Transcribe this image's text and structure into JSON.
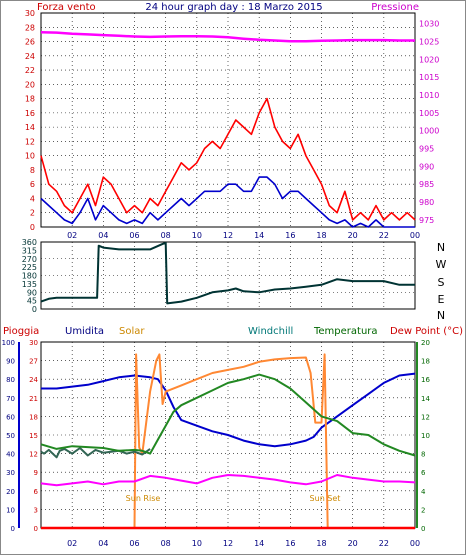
{
  "colors": {
    "wind": "#ff0000",
    "gust_avg": "#0000cc",
    "pressure": "#ff00ff",
    "direction": "#003333",
    "humidity": "#0000cc",
    "solar": "#ff8833",
    "windchill": "#336655",
    "temperature": "#228822",
    "dewpoint": "#ff00ff",
    "rain": "#ff0000",
    "grid": "#000000",
    "label_red": "#cc0000",
    "label_navy": "#000080",
    "label_orange": "#cc8800",
    "label_teal": "#007777",
    "label_green": "#006600",
    "label_magenta": "#cc00cc"
  },
  "header": {
    "wind_title": "Forza vento",
    "graph_title": "24 hour graph day : 18 Marzo 2015",
    "pressure_title": "Pressione"
  },
  "bottom_header": {
    "rain": "Pioggia",
    "humidity": "Umidita",
    "solar": "Solar",
    "windchill": "Windchill",
    "temperature": "Temperatura",
    "dewpoint": "Dew Point (°C)"
  },
  "annotations": {
    "sunrise": "Sun Rise",
    "sunset": "Sun Set"
  },
  "chart_data": [
    {
      "type": "line",
      "panel": "wind-pressure",
      "x_ticks": [
        "02",
        "04",
        "06",
        "08",
        "10",
        "12",
        "14",
        "16",
        "18",
        "20",
        "22",
        "00"
      ],
      "xlim": [
        0,
        24
      ],
      "left_ticks": [
        0,
        2,
        4,
        6,
        8,
        10,
        12,
        14,
        16,
        18,
        20,
        22,
        24,
        26,
        28,
        30
      ],
      "left_ylim": [
        0,
        30
      ],
      "right_ticks": [
        975,
        980,
        985,
        990,
        995,
        1000,
        1005,
        1010,
        1015,
        1020,
        1025,
        1030
      ],
      "right_ylim": [
        973,
        1033
      ],
      "series": [
        {
          "key": "wind",
          "axis": "left",
          "x": [
            0,
            0.5,
            1,
            1.5,
            2,
            2.5,
            3,
            3.5,
            4,
            4.5,
            5,
            5.5,
            6,
            6.5,
            7,
            7.5,
            8,
            8.5,
            9,
            9.5,
            10,
            10.5,
            11,
            11.5,
            12,
            12.5,
            13,
            13.5,
            14,
            14.5,
            15,
            15.5,
            16,
            16.5,
            17,
            17.5,
            18,
            18.5,
            19,
            19.5,
            20,
            20.5,
            21,
            21.5,
            22,
            22.5,
            23,
            23.5,
            24
          ],
          "values": [
            10,
            6,
            5,
            3,
            2,
            4,
            6,
            3,
            7,
            6,
            4,
            2,
            3,
            2,
            4,
            3,
            5,
            7,
            9,
            8,
            9,
            11,
            12,
            11,
            13,
            15,
            14,
            13,
            16,
            18,
            14,
            12,
            11,
            13,
            10,
            8,
            6,
            3,
            2,
            5,
            1,
            2,
            1,
            3,
            1,
            2,
            1,
            2,
            1
          ]
        },
        {
          "key": "gust_avg",
          "axis": "left",
          "x": [
            0,
            0.5,
            1,
            1.5,
            2,
            2.5,
            3,
            3.5,
            4,
            4.5,
            5,
            5.5,
            6,
            6.5,
            7,
            7.5,
            8,
            8.5,
            9,
            9.5,
            10,
            10.5,
            11,
            11.5,
            12,
            12.5,
            13,
            13.5,
            14,
            14.5,
            15,
            15.5,
            16,
            16.5,
            17,
            17.5,
            18,
            18.5,
            19,
            19.5,
            20,
            20.5,
            21,
            21.5,
            22,
            22.5,
            23,
            23.5,
            24
          ],
          "values": [
            4,
            3,
            2,
            1,
            0.5,
            2,
            4,
            1,
            3,
            2,
            1,
            0.5,
            1,
            0.5,
            2,
            1,
            2,
            3,
            4,
            3,
            4,
            5,
            5,
            5,
            6,
            6,
            5,
            5,
            7,
            7,
            6,
            4,
            5,
            5,
            4,
            3,
            2,
            1,
            0.5,
            1,
            0,
            0.5,
            0,
            1,
            0,
            0,
            0,
            0,
            0
          ]
        },
        {
          "key": "pressure",
          "axis": "right",
          "x": [
            0,
            1,
            2,
            3,
            4,
            5,
            6,
            7,
            8,
            9,
            10,
            11,
            12,
            13,
            14,
            15,
            16,
            17,
            18,
            19,
            20,
            21,
            22,
            23,
            24
          ],
          "values": [
            1027.6,
            1027.5,
            1027.2,
            1027,
            1026.8,
            1026.6,
            1026.4,
            1026.3,
            1026.4,
            1026.5,
            1026.5,
            1026.4,
            1026.2,
            1025.8,
            1025.5,
            1025.3,
            1025.1,
            1025.1,
            1025.2,
            1025.3,
            1025.4,
            1025.4,
            1025.4,
            1025.3,
            1025.3
          ]
        }
      ]
    },
    {
      "type": "line",
      "panel": "wind-direction",
      "x_ticks": [
        "02",
        "04",
        "06",
        "08",
        "10",
        "12",
        "14",
        "16",
        "18",
        "20",
        "22",
        "00"
      ],
      "xlim": [
        0,
        24
      ],
      "left_ticks": [
        0,
        45,
        90,
        135,
        180,
        225,
        270,
        315,
        360
      ],
      "left_ylim": [
        0,
        360
      ],
      "right_labels": [
        "N",
        "W",
        "S",
        "E",
        "N"
      ],
      "series": [
        {
          "key": "direction",
          "x": [
            0,
            0.5,
            1,
            2,
            3,
            3.6,
            3.7,
            4,
            5,
            6,
            7,
            7.8,
            8.0,
            8.1,
            9,
            10,
            11,
            12,
            12.5,
            13,
            14,
            15,
            16,
            17,
            18,
            19,
            20,
            21,
            22,
            23,
            24
          ],
          "values": [
            40,
            55,
            60,
            60,
            60,
            60,
            340,
            330,
            320,
            320,
            320,
            350,
            355,
            30,
            40,
            60,
            90,
            100,
            110,
            95,
            90,
            105,
            110,
            120,
            130,
            160,
            150,
            150,
            150,
            130,
            130
          ]
        }
      ]
    },
    {
      "type": "line",
      "panel": "humidity-solar-temperature",
      "x_ticks": [
        "02",
        "04",
        "06",
        "08",
        "10",
        "12",
        "14",
        "16",
        "18",
        "20",
        "22",
        "00"
      ],
      "xlim": [
        0,
        24
      ],
      "humidity_ticks": [
        0,
        10,
        20,
        30,
        40,
        50,
        60,
        70,
        80,
        90,
        100
      ],
      "humidity_ylim": [
        0,
        100
      ],
      "temp_left_ticks": [
        0,
        3,
        6,
        9,
        12,
        15,
        18,
        21,
        24,
        27,
        30
      ],
      "temp_left_ylim": [
        0,
        30
      ],
      "right_ticks": [
        0,
        2,
        4,
        6,
        8,
        10,
        12,
        14,
        16,
        18,
        20
      ],
      "right_ylim": [
        0,
        20
      ],
      "series": [
        {
          "key": "humidity",
          "axis": "humidity",
          "x": [
            0,
            1,
            2,
            3,
            4,
            5,
            6,
            7,
            7.5,
            8,
            8.5,
            9,
            10,
            11,
            12,
            13,
            14,
            15,
            16,
            17,
            17.5,
            18,
            19,
            20,
            21,
            22,
            23,
            24
          ],
          "values": [
            75,
            75,
            76,
            77,
            79,
            81,
            82,
            81,
            80,
            74,
            65,
            58,
            55,
            52,
            50,
            47,
            45,
            44,
            45,
            47,
            49,
            54,
            60,
            66,
            72,
            78,
            82,
            83
          ]
        },
        {
          "key": "solar",
          "axis": "temp_left",
          "x": [
            0,
            6,
            6.1,
            6.3,
            6.5,
            7,
            7.4,
            7.6,
            7.8,
            8,
            9,
            10,
            11,
            12,
            13,
            14,
            15,
            16,
            17,
            17.3,
            17.6,
            18,
            18.2,
            18.4,
            24
          ],
          "values": [
            0,
            0,
            28,
            13,
            12,
            22,
            27,
            28,
            20,
            22,
            23,
            24,
            25,
            25.5,
            26,
            26.8,
            27.2,
            27.4,
            27.5,
            25,
            17,
            17,
            28,
            0,
            0
          ]
        },
        {
          "key": "windchill",
          "axis": "right",
          "x": [
            0,
            0.2,
            0.5,
            1,
            1.2,
            1.5,
            2,
            2.5,
            3,
            3.5,
            4,
            5,
            5.5,
            6,
            6.5,
            7
          ],
          "values": [
            8.2,
            8.0,
            8.4,
            7.6,
            8.3,
            8.5,
            8.0,
            8.6,
            7.8,
            8.4,
            8.1,
            8.3,
            8.0,
            8.2,
            7.9,
            8.5
          ]
        },
        {
          "key": "temperature",
          "axis": "right",
          "x": [
            0,
            1,
            2,
            3,
            4,
            5,
            6,
            6.5,
            7,
            7.5,
            8,
            8.5,
            9,
            10,
            11,
            12,
            13,
            14,
            15,
            16,
            17,
            18,
            19,
            20,
            21,
            22,
            23,
            24
          ],
          "values": [
            9,
            8.5,
            8.8,
            8.7,
            8.6,
            8.3,
            8.4,
            8.3,
            8.0,
            9.5,
            11,
            12.5,
            13.2,
            14,
            14.8,
            15.6,
            16,
            16.5,
            16,
            15,
            13.5,
            12,
            11.5,
            10.2,
            10,
            9,
            8.3,
            7.8
          ]
        },
        {
          "key": "dewpoint",
          "axis": "right",
          "x": [
            0,
            1,
            2,
            3,
            4,
            5,
            6,
            7,
            8,
            9,
            10,
            11,
            12,
            13,
            14,
            15,
            16,
            17,
            18,
            19,
            20,
            21,
            22,
            23,
            24
          ],
          "values": [
            4.8,
            4.6,
            4.8,
            5.0,
            4.7,
            5.0,
            5.0,
            5.6,
            5.4,
            5.1,
            4.8,
            5.4,
            5.7,
            5.6,
            5.4,
            5.2,
            4.9,
            4.7,
            5.0,
            5.7,
            5.4,
            5.2,
            5.0,
            5.0,
            4.9
          ]
        },
        {
          "key": "rain",
          "axis": "humidity",
          "x": [
            0,
            24
          ],
          "values": [
            0,
            0
          ]
        }
      ]
    }
  ]
}
